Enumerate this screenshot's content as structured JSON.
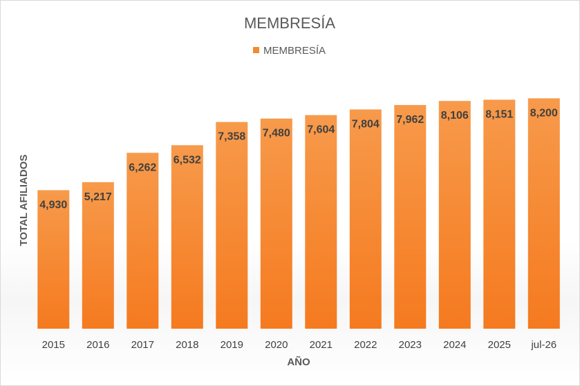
{
  "chart_data": {
    "type": "bar",
    "title": "MEMBRESÍA",
    "xlabel": "AÑO",
    "ylabel": "TOTAL AFILIADOS",
    "categories": [
      "2015",
      "2016",
      "2017",
      "2018",
      "2019",
      "2020",
      "2021",
      "2022",
      "2023",
      "2024",
      "2025",
      "jul-26"
    ],
    "series": [
      {
        "name": "MEMBRESÍA",
        "values": [
          4930,
          5217,
          6262,
          6532,
          7358,
          7480,
          7604,
          7804,
          7962,
          8106,
          8151,
          8200
        ],
        "labels": [
          "4,930",
          "5,217",
          "6,262",
          "6,532",
          "7,358",
          "7,480",
          "7,604",
          "7,804",
          "7,962",
          "8,106",
          "8,151",
          "8,200"
        ]
      }
    ],
    "ylim": [
      0,
      8800
    ],
    "grid": false,
    "legend": "top",
    "colors": {
      "bar_top": "#F79A4B",
      "bar_bottom": "#F57A1F",
      "legend_swatch": "#F38A2E"
    }
  }
}
